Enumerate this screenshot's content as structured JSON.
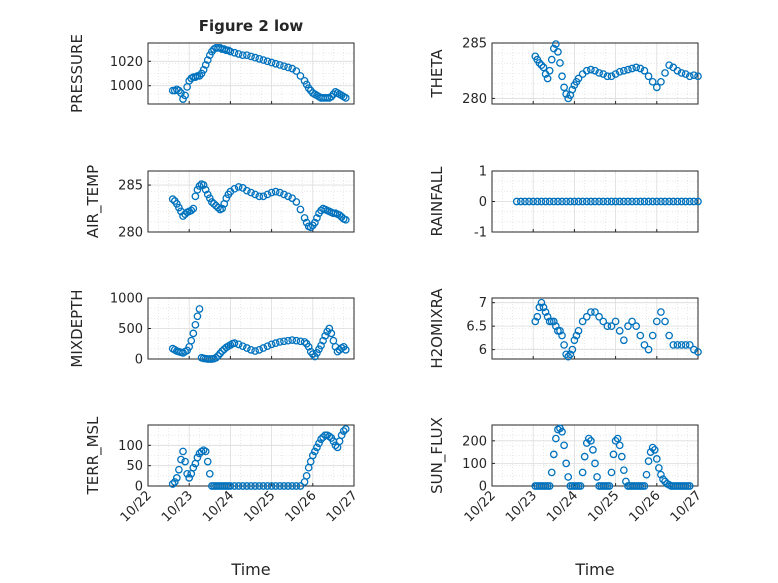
{
  "figure": {
    "title": "Figure 2 low",
    "marker_color": "#0072BD",
    "grid": "on (major + minor dotted)",
    "x_range": [
      "10/22",
      "10/27"
    ],
    "x_tick_labels": [
      "10/22",
      "10/23",
      "10/24",
      "10/25",
      "10/26",
      "10/27"
    ],
    "x_label": "Time"
  },
  "chart_data": [
    {
      "id": "pressure",
      "type": "scatter",
      "ylabel": "PRESSURE",
      "xlim": [
        0,
        5
      ],
      "ylim": [
        985,
        1035
      ],
      "yticks": [
        1000,
        1020
      ],
      "x": [
        0.6,
        0.65,
        0.7,
        0.75,
        0.8,
        0.85,
        0.9,
        0.95,
        1.0,
        1.05,
        1.1,
        1.15,
        1.2,
        1.25,
        1.3,
        1.35,
        1.4,
        1.45,
        1.5,
        1.55,
        1.6,
        1.65,
        1.7,
        1.75,
        1.8,
        1.85,
        1.9,
        1.95,
        2.0,
        2.1,
        2.2,
        2.3,
        2.4,
        2.5,
        2.6,
        2.7,
        2.8,
        2.9,
        3.0,
        3.1,
        3.2,
        3.3,
        3.4,
        3.5,
        3.6,
        3.7,
        3.8,
        3.85,
        3.9,
        3.95,
        4.0,
        4.05,
        4.1,
        4.15,
        4.2,
        4.25,
        4.3,
        4.35,
        4.4,
        4.45,
        4.5,
        4.55,
        4.6,
        4.65,
        4.7,
        4.75,
        4.8
      ],
      "y": [
        996,
        996,
        997,
        996,
        994,
        989,
        992,
        999,
        1004,
        1006,
        1007,
        1007,
        1008,
        1008,
        1010,
        1013,
        1017,
        1021,
        1025,
        1028,
        1030,
        1031,
        1031,
        1031,
        1030,
        1030,
        1029,
        1029,
        1028,
        1027,
        1026,
        1025,
        1025,
        1024,
        1023,
        1022,
        1021,
        1020,
        1019,
        1018,
        1017,
        1016,
        1015,
        1014,
        1012,
        1008,
        1004,
        1001,
        998,
        996,
        994,
        993,
        992,
        991,
        990,
        990,
        990,
        990,
        990,
        991,
        993,
        995,
        994,
        993,
        992,
        991,
        990
      ]
    },
    {
      "id": "theta",
      "type": "scatter",
      "ylabel": "THETA",
      "xlim": [
        0,
        5
      ],
      "ylim": [
        279.5,
        285
      ],
      "yticks": [
        280,
        285
      ],
      "x": [
        1.05,
        1.1,
        1.15,
        1.2,
        1.25,
        1.3,
        1.35,
        1.4,
        1.45,
        1.5,
        1.55,
        1.6,
        1.65,
        1.7,
        1.75,
        1.8,
        1.85,
        1.9,
        1.95,
        2.0,
        2.05,
        2.1,
        2.2,
        2.3,
        2.4,
        2.5,
        2.6,
        2.7,
        2.8,
        2.9,
        3.0,
        3.1,
        3.2,
        3.3,
        3.4,
        3.5,
        3.6,
        3.7,
        3.8,
        3.9,
        4.0,
        4.1,
        4.2,
        4.3,
        4.4,
        4.5,
        4.6,
        4.7,
        4.8,
        4.9,
        5.0
      ],
      "y": [
        283.8,
        283.5,
        283.2,
        283.0,
        282.8,
        282.2,
        281.8,
        282.5,
        283.5,
        284.5,
        284.9,
        284.2,
        283.2,
        282.0,
        281.0,
        280.4,
        280.0,
        280.3,
        280.8,
        281.2,
        281.5,
        281.8,
        282.2,
        282.5,
        282.6,
        282.5,
        282.3,
        282.2,
        282.0,
        282.0,
        282.2,
        282.4,
        282.5,
        282.6,
        282.7,
        282.8,
        282.7,
        282.5,
        282.0,
        281.5,
        281.0,
        281.5,
        282.3,
        283.0,
        282.8,
        282.5,
        282.3,
        282.2,
        282.0,
        282.1,
        282.0
      ]
    },
    {
      "id": "air_temp",
      "type": "scatter",
      "ylabel": "AIR_TEMP",
      "xlim": [
        0,
        5
      ],
      "ylim": [
        280,
        286.5
      ],
      "yticks": [
        280,
        285
      ],
      "x": [
        0.6,
        0.65,
        0.7,
        0.75,
        0.8,
        0.85,
        0.9,
        0.95,
        1.0,
        1.05,
        1.1,
        1.15,
        1.2,
        1.25,
        1.3,
        1.35,
        1.4,
        1.45,
        1.5,
        1.55,
        1.6,
        1.65,
        1.7,
        1.75,
        1.8,
        1.85,
        1.9,
        1.95,
        2.0,
        2.1,
        2.2,
        2.3,
        2.4,
        2.5,
        2.6,
        2.7,
        2.8,
        2.9,
        3.0,
        3.1,
        3.2,
        3.3,
        3.4,
        3.5,
        3.6,
        3.7,
        3.8,
        3.85,
        3.9,
        3.95,
        4.0,
        4.05,
        4.1,
        4.15,
        4.2,
        4.25,
        4.3,
        4.35,
        4.4,
        4.45,
        4.5,
        4.55,
        4.6,
        4.65,
        4.7,
        4.75,
        4.8
      ],
      "y": [
        283.5,
        283.3,
        283.0,
        282.6,
        282.2,
        281.7,
        281.9,
        282.1,
        282.2,
        282.3,
        282.5,
        283.8,
        284.5,
        284.9,
        285.1,
        285.0,
        284.5,
        284.0,
        283.6,
        283.2,
        283.0,
        282.8,
        282.6,
        282.4,
        282.5,
        283.0,
        283.6,
        284.0,
        284.3,
        284.6,
        284.8,
        284.7,
        284.4,
        284.2,
        284.0,
        283.8,
        283.8,
        284.0,
        284.2,
        284.3,
        284.2,
        284.0,
        283.8,
        283.6,
        283.2,
        282.4,
        281.5,
        281.0,
        280.6,
        280.5,
        280.7,
        281.0,
        281.5,
        282.0,
        282.3,
        282.5,
        282.4,
        282.3,
        282.2,
        282.1,
        282.0,
        282.0,
        281.9,
        281.8,
        281.6,
        281.4,
        281.3
      ]
    },
    {
      "id": "rainfall",
      "type": "scatter",
      "ylabel": "RAINFALL",
      "xlim": [
        0,
        5
      ],
      "ylim": [
        -1,
        1
      ],
      "yticks": [
        -1,
        0,
        1
      ],
      "x": [
        0.6,
        0.7,
        0.8,
        0.9,
        1.0,
        1.1,
        1.2,
        1.3,
        1.4,
        1.5,
        1.6,
        1.7,
        1.8,
        1.9,
        2.0,
        2.1,
        2.2,
        2.3,
        2.4,
        2.5,
        2.6,
        2.7,
        2.8,
        2.9,
        3.0,
        3.1,
        3.2,
        3.3,
        3.4,
        3.5,
        3.6,
        3.7,
        3.8,
        3.9,
        4.0,
        4.1,
        4.2,
        4.3,
        4.4,
        4.5,
        4.6,
        4.7,
        4.8,
        4.9,
        5.0
      ],
      "y": [
        0,
        0,
        0,
        0,
        0,
        0,
        0,
        0,
        0,
        0,
        0,
        0,
        0,
        0,
        0,
        0,
        0,
        0,
        0,
        0,
        0,
        0,
        0,
        0,
        0,
        0,
        0,
        0,
        0,
        0,
        0,
        0,
        0,
        0,
        0,
        0,
        0,
        0,
        0,
        0,
        0,
        0,
        0,
        0,
        0
      ]
    },
    {
      "id": "mixdepth",
      "type": "scatter",
      "ylabel": "MIXDEPTH",
      "xlim": [
        0,
        5
      ],
      "ylim": [
        0,
        1000
      ],
      "yticks": [
        0,
        500,
        1000
      ],
      "x": [
        0.6,
        0.65,
        0.7,
        0.75,
        0.8,
        0.85,
        0.9,
        0.95,
        1.0,
        1.05,
        1.1,
        1.15,
        1.2,
        1.25,
        1.3,
        1.35,
        1.4,
        1.45,
        1.5,
        1.55,
        1.6,
        1.65,
        1.7,
        1.75,
        1.8,
        1.85,
        1.9,
        1.95,
        2.0,
        2.05,
        2.1,
        2.2,
        2.3,
        2.4,
        2.5,
        2.6,
        2.7,
        2.8,
        2.9,
        3.0,
        3.1,
        3.2,
        3.3,
        3.4,
        3.5,
        3.6,
        3.7,
        3.8,
        3.85,
        3.9,
        3.95,
        4.0,
        4.05,
        4.1,
        4.15,
        4.2,
        4.25,
        4.3,
        4.35,
        4.4,
        4.45,
        4.5,
        4.55,
        4.6,
        4.65,
        4.7,
        4.75,
        4.8
      ],
      "y": [
        170,
        150,
        130,
        120,
        110,
        100,
        120,
        140,
        200,
        300,
        420,
        560,
        700,
        820,
        20,
        10,
        5,
        0,
        0,
        0,
        5,
        20,
        50,
        90,
        130,
        160,
        190,
        210,
        230,
        250,
        260,
        240,
        210,
        180,
        150,
        130,
        150,
        180,
        210,
        240,
        260,
        280,
        290,
        300,
        310,
        300,
        290,
        280,
        250,
        200,
        120,
        80,
        40,
        100,
        160,
        220,
        300,
        380,
        450,
        500,
        420,
        300,
        200,
        120,
        150,
        180,
        200,
        150
      ]
    },
    {
      "id": "h2omixra",
      "type": "scatter",
      "ylabel": "H2OMIXRA",
      "xlim": [
        0,
        5
      ],
      "ylim": [
        5.8,
        7.1
      ],
      "yticks": [
        6,
        6.5,
        7
      ],
      "x": [
        1.05,
        1.1,
        1.15,
        1.2,
        1.25,
        1.3,
        1.35,
        1.4,
        1.45,
        1.5,
        1.55,
        1.6,
        1.65,
        1.7,
        1.75,
        1.8,
        1.85,
        1.9,
        1.95,
        2.0,
        2.05,
        2.1,
        2.2,
        2.3,
        2.4,
        2.5,
        2.6,
        2.7,
        2.8,
        2.9,
        3.0,
        3.1,
        3.2,
        3.3,
        3.4,
        3.5,
        3.6,
        3.7,
        3.8,
        3.9,
        4.0,
        4.1,
        4.2,
        4.3,
        4.4,
        4.5,
        4.6,
        4.7,
        4.8,
        4.9,
        5.0
      ],
      "y": [
        6.6,
        6.7,
        6.9,
        7.0,
        6.9,
        6.8,
        6.7,
        6.6,
        6.6,
        6.6,
        6.5,
        6.4,
        6.4,
        6.3,
        6.1,
        5.9,
        5.85,
        5.9,
        6.0,
        6.2,
        6.3,
        6.4,
        6.6,
        6.7,
        6.8,
        6.8,
        6.7,
        6.6,
        6.5,
        6.5,
        6.6,
        6.4,
        6.2,
        6.5,
        6.6,
        6.5,
        6.3,
        6.1,
        6.0,
        6.3,
        6.6,
        6.8,
        6.6,
        6.3,
        6.1,
        6.1,
        6.1,
        6.1,
        6.1,
        6.0,
        5.95
      ]
    },
    {
      "id": "terr_msl",
      "type": "scatter",
      "ylabel": "TERR_MSL",
      "xlim": [
        0,
        5
      ],
      "ylim": [
        0,
        150
      ],
      "yticks": [
        0,
        50,
        100
      ],
      "x": [
        0.6,
        0.65,
        0.7,
        0.75,
        0.8,
        0.85,
        0.9,
        0.95,
        1.0,
        1.05,
        1.1,
        1.15,
        1.2,
        1.25,
        1.3,
        1.35,
        1.4,
        1.45,
        1.5,
        1.55,
        1.6,
        1.65,
        1.7,
        1.75,
        1.8,
        1.85,
        1.9,
        1.95,
        2.0,
        2.1,
        2.2,
        2.3,
        2.4,
        2.5,
        2.6,
        2.7,
        2.8,
        2.9,
        3.0,
        3.1,
        3.2,
        3.3,
        3.4,
        3.5,
        3.6,
        3.7,
        3.8,
        3.85,
        3.9,
        3.95,
        4.0,
        4.05,
        4.1,
        4.15,
        4.2,
        4.25,
        4.3,
        4.35,
        4.4,
        4.45,
        4.5,
        4.55,
        4.6,
        4.65,
        4.7,
        4.75,
        4.8
      ],
      "y": [
        5,
        10,
        20,
        40,
        65,
        85,
        60,
        30,
        20,
        30,
        45,
        55,
        70,
        80,
        85,
        88,
        85,
        60,
        30,
        0,
        0,
        0,
        0,
        0,
        0,
        0,
        0,
        0,
        0,
        0,
        0,
        0,
        0,
        0,
        0,
        0,
        0,
        0,
        0,
        0,
        0,
        0,
        0,
        0,
        0,
        0,
        10,
        25,
        45,
        60,
        75,
        85,
        95,
        105,
        115,
        120,
        125,
        125,
        122,
        118,
        110,
        100,
        95,
        110,
        125,
        135,
        140
      ]
    },
    {
      "id": "sun_flux",
      "type": "scatter",
      "ylabel": "SUN_FLUX",
      "xlim": [
        0,
        5
      ],
      "ylim": [
        0,
        270
      ],
      "yticks": [
        0,
        100,
        200
      ],
      "x": [
        1.05,
        1.1,
        1.15,
        1.2,
        1.25,
        1.3,
        1.35,
        1.4,
        1.45,
        1.5,
        1.55,
        1.6,
        1.65,
        1.7,
        1.75,
        1.8,
        1.85,
        1.9,
        1.95,
        2.0,
        2.05,
        2.1,
        2.15,
        2.2,
        2.25,
        2.3,
        2.35,
        2.4,
        2.45,
        2.5,
        2.55,
        2.6,
        2.65,
        2.7,
        2.75,
        2.8,
        2.85,
        2.9,
        2.95,
        3.0,
        3.05,
        3.1,
        3.15,
        3.2,
        3.25,
        3.3,
        3.35,
        3.4,
        3.45,
        3.5,
        3.55,
        3.6,
        3.65,
        3.7,
        3.75,
        3.8,
        3.85,
        3.9,
        3.95,
        4.0,
        4.05,
        4.1,
        4.15,
        4.2,
        4.25,
        4.3,
        4.35,
        4.4,
        4.45,
        4.5,
        4.55,
        4.6,
        4.65,
        4.7,
        4.75,
        4.8
      ],
      "y": [
        0,
        0,
        0,
        0,
        0,
        0,
        0,
        0,
        60,
        140,
        210,
        250,
        255,
        240,
        180,
        100,
        40,
        0,
        0,
        0,
        0,
        0,
        0,
        60,
        130,
        190,
        210,
        200,
        160,
        100,
        40,
        0,
        0,
        0,
        0,
        0,
        0,
        60,
        140,
        200,
        210,
        180,
        130,
        70,
        20,
        0,
        0,
        0,
        0,
        0,
        0,
        0,
        0,
        0,
        50,
        110,
        150,
        170,
        160,
        120,
        80,
        50,
        30,
        20,
        10,
        5,
        0,
        0,
        0,
        0,
        0,
        0,
        0,
        0,
        0,
        0
      ]
    }
  ]
}
